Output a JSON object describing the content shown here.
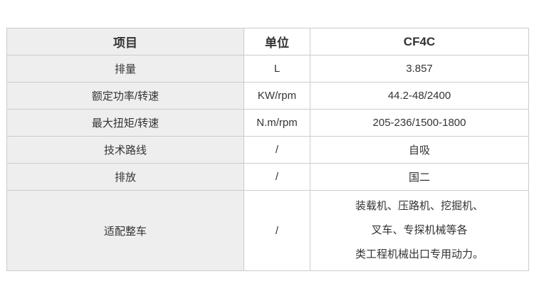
{
  "colors": {
    "item_column_bg": "#eeeeee",
    "border": "#cccccc",
    "text": "#333333",
    "page_bg": "#ffffff"
  },
  "table": {
    "headers": {
      "item": "项目",
      "unit": "单位",
      "model": "CF4C"
    },
    "rows": [
      {
        "item": "排量",
        "unit": "L",
        "value": "3.857"
      },
      {
        "item": "额定功率/转速",
        "unit": "KW/rpm",
        "value": "44.2-48/2400"
      },
      {
        "item": "最大扭矩/转速",
        "unit": "N.m/rpm",
        "value": "205-236/1500-1800"
      },
      {
        "item": "技术路线",
        "unit": "/",
        "value": "自吸"
      },
      {
        "item": "排放",
        "unit": "/",
        "value": "国二"
      },
      {
        "item": "适配整车",
        "unit": "/",
        "value_lines": [
          "装载机、压路机、挖掘机、",
          "叉车、专探机械等各",
          "类工程机械出口专用动力。"
        ]
      }
    ]
  }
}
